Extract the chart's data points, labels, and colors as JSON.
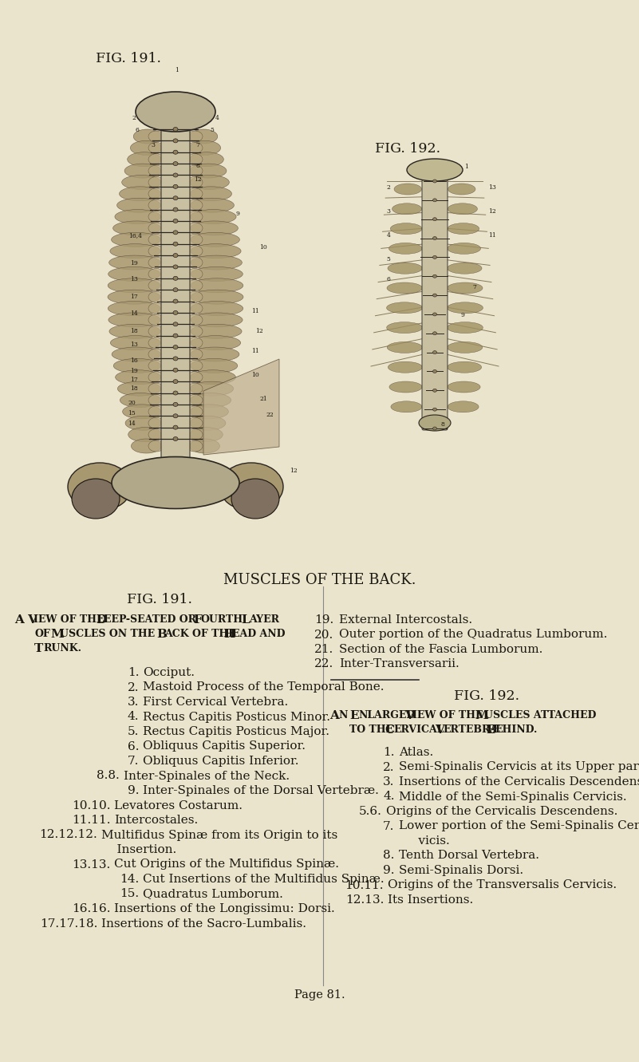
{
  "bg_color": "#eae4cc",
  "text_color": "#1a1810",
  "title": "MUSCLES OF THE BACK.",
  "page_num": "Page 81.",
  "fig191_items_left": [
    [
      "1.",
      "Occiput.",
      0.22
    ],
    [
      "2.",
      "Mastoid Process of the Temporal Bone.",
      0.22
    ],
    [
      "3.",
      "First Cervical Vertebra.",
      0.22
    ],
    [
      "4.",
      "Rectus Capitis Posticus Minor.",
      0.22
    ],
    [
      "5.",
      "Rectus Capitis Posticus Major.",
      0.22
    ],
    [
      "6.",
      "Obliquus Capitis Superior.",
      0.22
    ],
    [
      "7.",
      "Obliquus Capitis Inferior.",
      0.22
    ],
    [
      "8.8.",
      "Inter-Spinales of the Neck.",
      0.19
    ],
    [
      "9.",
      "Inter-Spinales of the Dorsal Vertebræ.",
      0.22
    ],
    [
      "10.10.",
      "Levatores Costarum.",
      0.175
    ],
    [
      "11.11.",
      "Intercostales.",
      0.175
    ],
    [
      "12.12.12.",
      "Multifidus Spinæ from its Origin to its",
      0.155
    ],
    [
      "",
      "    Insertion.",
      0.155
    ],
    [
      "13.13.",
      "Cut Origins of the Multifidus Spinæ.",
      0.175
    ],
    [
      "14.",
      "Cut Insertions of the Multifidus Spinæ.",
      0.22
    ],
    [
      "15.",
      "Quadratus Lumborum.",
      0.22
    ],
    [
      "16.16.",
      "Insertions of the Longissimu: Dorsi.",
      0.175
    ],
    [
      "17.17.18.",
      "Insertions of the Sacro-Lumbalis.",
      0.155
    ]
  ],
  "fig191_items_right": [
    [
      "19.",
      "External Intercostals."
    ],
    [
      "20.",
      "Outer portion of the Quadratus Lumborum."
    ],
    [
      "21.",
      "Section of the Fascia Lumborum."
    ],
    [
      "22.",
      "Inter-Transversarii."
    ]
  ],
  "fig192_items": [
    [
      "1.",
      "Atlas.",
      0.62
    ],
    [
      "2.",
      "Semi-Spinalis Cervicis at its Upper part.",
      0.62
    ],
    [
      "3.",
      "Insertions of the Cervicalis Descendens.",
      0.62
    ],
    [
      "4.",
      "Middle of the Semi-Spinalis Cervicis.",
      0.62
    ],
    [
      "5.6.",
      "Origins of the Cervicalis Descendens.",
      0.6
    ],
    [
      "7.",
      "Lower portion of the Semi-Spinalis Cer-",
      0.62
    ],
    [
      "",
      "     vicis.",
      0.62
    ],
    [
      "8.",
      "Tenth Dorsal Vertebra.",
      0.62
    ],
    [
      "9.",
      "Semi-Spinalis Dorsi.",
      0.62
    ],
    [
      "10.11.",
      "Origins of the Transversalis Cervicis.",
      0.603
    ],
    [
      "12.13.",
      "Its Insertions.",
      0.603
    ]
  ]
}
